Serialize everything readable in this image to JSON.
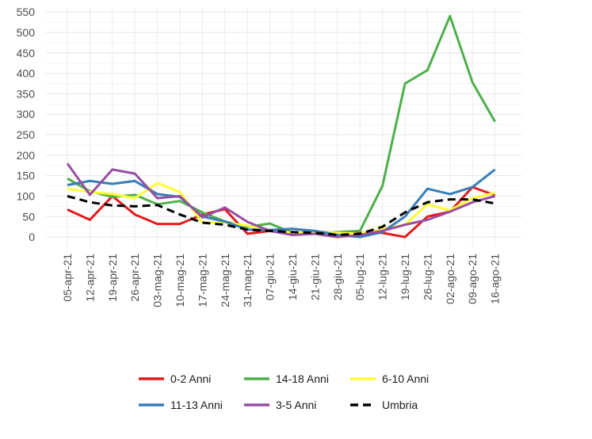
{
  "chart_data": {
    "type": "line",
    "title": "",
    "xlabel": "",
    "ylabel": "",
    "ylim": [
      -25,
      560
    ],
    "yticks": [
      0,
      50,
      100,
      150,
      200,
      250,
      300,
      350,
      400,
      450,
      500,
      550
    ],
    "grid": true,
    "legend_position": "bottom",
    "categories": [
      "05-apr-21",
      "12-apr-21",
      "19-apr-21",
      "26-apr-21",
      "03-mag-21",
      "10-mag-21",
      "17-mag-21",
      "24-mag-21",
      "31-mag-21",
      "07-giu-21",
      "14-giu-21",
      "21-giu-21",
      "28-giu-21",
      "05-lug-21",
      "12-lug-21",
      "19-lug-21",
      "26-lug-21",
      "02-ago-21",
      "09-ago-21",
      "16-ago-21"
    ],
    "series": [
      {
        "name": "0-2 Anni",
        "color": "#e41a1c",
        "dash": false,
        "values": [
          67,
          42,
          100,
          55,
          32,
          32,
          55,
          68,
          8,
          15,
          10,
          13,
          10,
          10,
          10,
          0,
          50,
          62,
          122,
          102
        ]
      },
      {
        "name": "14-18 Anni",
        "color": "#4daf4a",
        "dash": false,
        "values": [
          143,
          112,
          98,
          103,
          80,
          88,
          60,
          38,
          25,
          33,
          10,
          8,
          12,
          15,
          125,
          375,
          408,
          540,
          378,
          282
        ]
      },
      {
        "name": "6-10 Anni",
        "color": "#ffff33",
        "dash": false,
        "values": [
          118,
          110,
          105,
          95,
          132,
          110,
          35,
          35,
          28,
          15,
          10,
          12,
          10,
          8,
          20,
          30,
          80,
          65,
          95,
          108
        ]
      },
      {
        "name": "11-13 Anni",
        "color": "#377eb8",
        "dash": false,
        "values": [
          127,
          137,
          130,
          137,
          105,
          98,
          50,
          38,
          18,
          17,
          20,
          15,
          5,
          0,
          12,
          50,
          118,
          105,
          122,
          165
        ]
      },
      {
        "name": "3-5 Anni",
        "color": "#984ea3",
        "dash": false,
        "values": [
          180,
          103,
          165,
          155,
          95,
          100,
          48,
          72,
          37,
          15,
          5,
          8,
          0,
          5,
          15,
          30,
          42,
          62,
          85,
          100
        ]
      },
      {
        "name": "Umbria",
        "color": "#000000",
        "dash": true,
        "values": [
          100,
          85,
          77,
          75,
          78,
          55,
          35,
          30,
          18,
          15,
          12,
          10,
          5,
          8,
          25,
          60,
          85,
          92,
          92,
          82
        ]
      }
    ],
    "legend_order": [
      [
        "0-2 Anni",
        "14-18 Anni",
        "6-10 Anni"
      ],
      [
        "11-13 Anni",
        "3-5 Anni",
        "Umbria"
      ]
    ]
  }
}
